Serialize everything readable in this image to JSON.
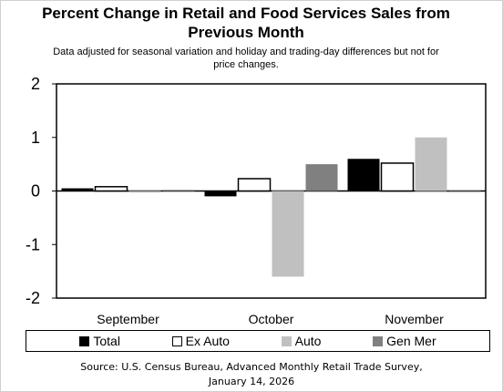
{
  "chart_data": {
    "type": "bar",
    "title_line1": "Percent Change in Retail and Food Services Sales from",
    "title_line2": "Previous Month",
    "subtitle_line1": "Data adjusted for seasonal variation and holiday and trading-day differences but not for",
    "subtitle_line2": "price changes.",
    "categories": [
      "September",
      "October",
      "November"
    ],
    "ylim": [
      -2,
      2
    ],
    "yticks": [
      "2",
      "1",
      "0",
      "-1",
      "-2"
    ],
    "grid": false,
    "legend_position": "bottom",
    "series": [
      {
        "name": "Total",
        "color": "#000000",
        "values": [
          0.05,
          -0.1,
          0.6
        ]
      },
      {
        "name": "Ex Auto",
        "color": "#ffffff",
        "values": [
          0.08,
          0.23,
          0.52
        ]
      },
      {
        "name": "Auto",
        "color": "#c0c0c0",
        "values": [
          -0.03,
          -1.6,
          1.0
        ]
      },
      {
        "name": "Gen Mer",
        "color": "#808080",
        "values": [
          0.02,
          0.5,
          -0.02
        ]
      }
    ],
    "source_line1": "Source: U.S. Census Bureau, Advanced Monthly Retail Trade Survey,",
    "source_line2": "January 14, 2026"
  }
}
